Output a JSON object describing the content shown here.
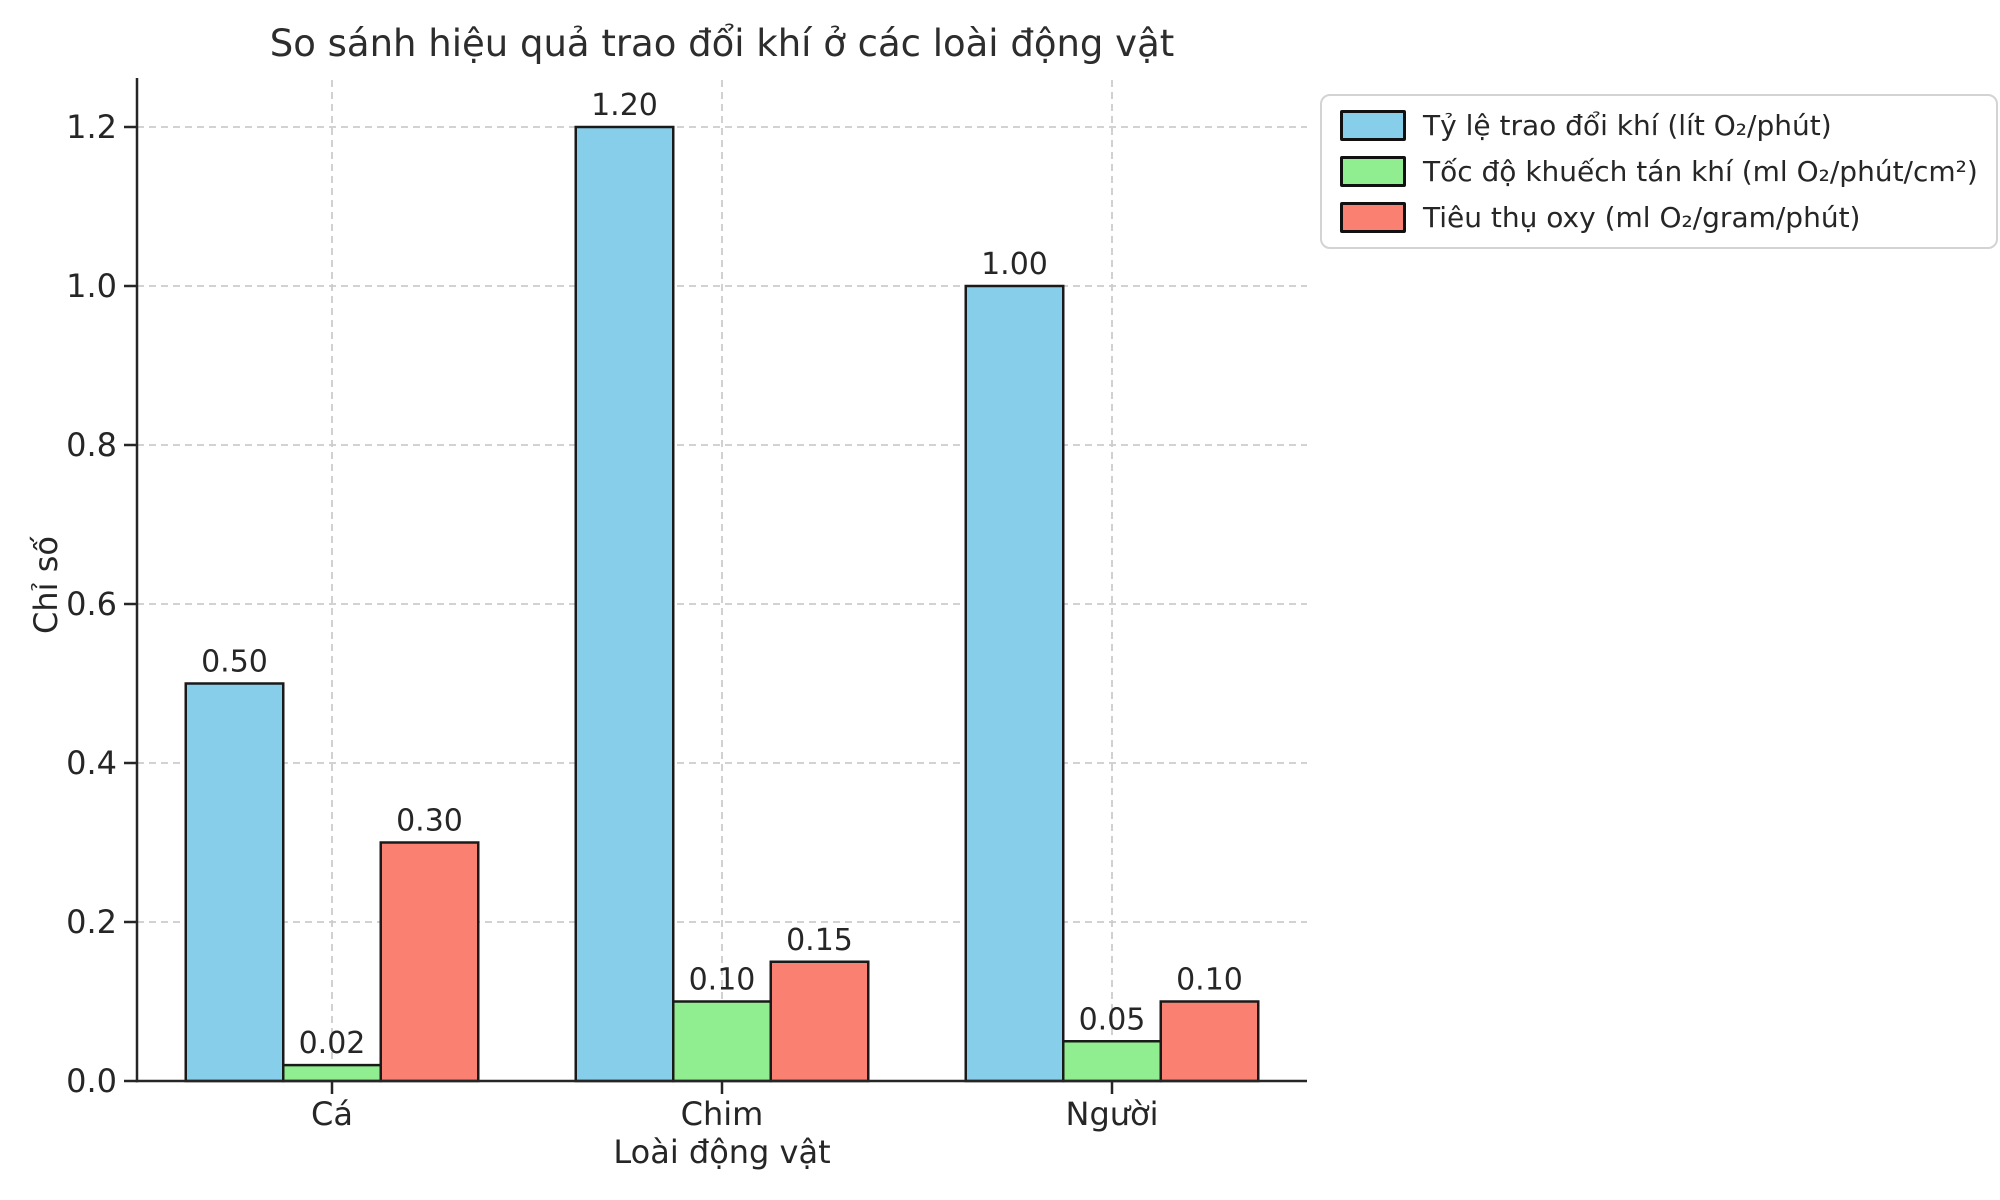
{
  "chart_data": {
    "type": "bar",
    "title": "So sánh hiệu quả trao đổi khí ở các loài động vật",
    "xlabel": "Loài động vật",
    "ylabel": "Chỉ số",
    "categories": [
      "Cá",
      "Chim",
      "Người"
    ],
    "series": [
      {
        "name": "Tỷ lệ trao đổi khí (lít O₂/phút)",
        "color": "#87CEEB",
        "values": [
          0.5,
          1.2,
          1.0
        ]
      },
      {
        "name": "Tốc độ khuếch tán khí (ml O₂/phút/cm²)",
        "color": "#90EE90",
        "values": [
          0.02,
          0.1,
          0.05
        ]
      },
      {
        "name": "Tiêu thụ oxy (ml O₂/gram/phút)",
        "color": "#FA8072",
        "values": [
          0.3,
          0.15,
          0.1
        ]
      }
    ],
    "bar_value_labels": [
      [
        "0.50",
        "1.20",
        "1.00"
      ],
      [
        "0.02",
        "0.10",
        "0.05"
      ],
      [
        "0.30",
        "0.15",
        "0.10"
      ]
    ],
    "yticks": [
      "0.0",
      "0.2",
      "0.4",
      "0.6",
      "0.8",
      "1.0",
      "1.2"
    ],
    "ylim": [
      0,
      1.26
    ],
    "grid": true,
    "grid_style": "dashed",
    "legend_position": "upper right",
    "colors": {
      "bar_edge": "#1a1a1a",
      "grid": "#cccccc",
      "spine": "#262626",
      "tick": "#262626",
      "text": "#262626",
      "background": "#ffffff",
      "legend_border": "#d3d3d3"
    }
  }
}
